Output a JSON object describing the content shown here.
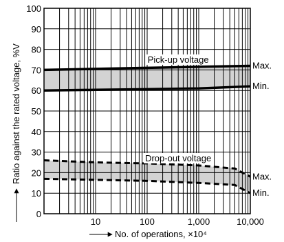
{
  "chart_data": {
    "type": "line",
    "title": "",
    "xlabel": "No. of operations, ×10⁴",
    "ylabel": "Ratio against the rated voltage, %V",
    "x_scale": "log",
    "xlim": [
      1,
      10000
    ],
    "ylim": [
      0,
      100
    ],
    "x_ticks": [
      10,
      100,
      1000,
      10000
    ],
    "x_tick_labels": [
      "10",
      "100",
      "1,000",
      "10,000"
    ],
    "y_ticks": [
      0,
      10,
      20,
      30,
      40,
      50,
      60,
      70,
      80,
      90,
      100
    ],
    "y_tick_labels": [
      "0",
      "10",
      "20",
      "30",
      "40",
      "50",
      "60",
      "70",
      "80",
      "90",
      "100"
    ],
    "grid": true,
    "series": [
      {
        "name": "Pick-up voltage",
        "style": "solid",
        "fill_color": "#d3d3d3",
        "max": {
          "x": [
            1,
            10,
            100,
            1000,
            10000
          ],
          "y": [
            70,
            70.5,
            71,
            71.5,
            72
          ]
        },
        "min": {
          "x": [
            1,
            10,
            100,
            1000,
            10000
          ],
          "y": [
            60,
            60.3,
            60.6,
            61,
            62
          ]
        }
      },
      {
        "name": "Drop-out voltage",
        "style": "dashed",
        "fill_color": "#d3d3d3",
        "max": {
          "x": [
            1,
            10,
            100,
            1000,
            5000,
            10000
          ],
          "y": [
            26,
            25,
            24.5,
            23.5,
            22,
            18
          ]
        },
        "min": {
          "x": [
            1,
            10,
            100,
            1000,
            5000,
            10000
          ],
          "y": [
            17,
            16.5,
            16,
            15,
            14,
            10
          ]
        }
      }
    ],
    "annotations": [
      {
        "text": "Pick-up voltage",
        "x": 400,
        "y": 72.5
      },
      {
        "text": "Drop-out voltage",
        "x": 400,
        "y": 24.5
      },
      {
        "text": "Max.",
        "x": 10000,
        "y": 72,
        "side": "right"
      },
      {
        "text": "Min.",
        "x": 10000,
        "y": 62,
        "side": "right"
      },
      {
        "text": "Max.",
        "x": 10000,
        "y": 18,
        "side": "right"
      },
      {
        "text": "Min.",
        "x": 10000,
        "y": 10,
        "side": "right"
      }
    ]
  }
}
